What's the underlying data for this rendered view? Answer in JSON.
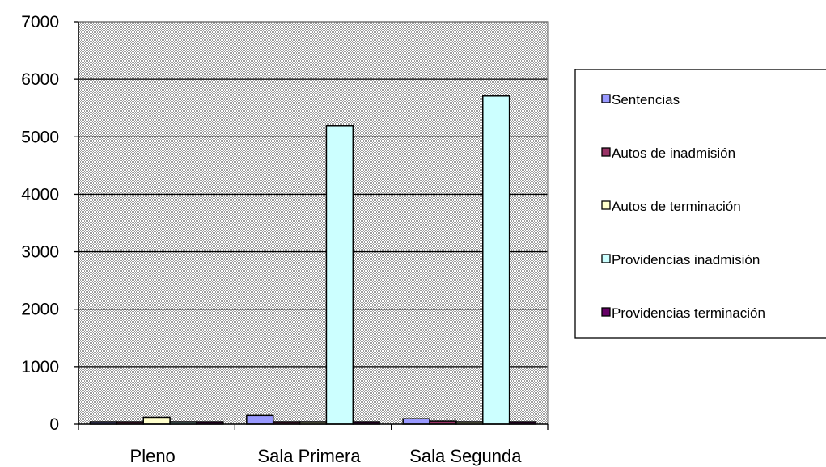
{
  "chart_data": {
    "type": "bar",
    "categories": [
      "Pleno",
      "Sala Primera",
      "Sala Segunda"
    ],
    "series": [
      {
        "name": "Sentencias",
        "values": [
          20,
          150,
          95
        ],
        "color": "#9999FF"
      },
      {
        "name": "Autos de inadmisión",
        "values": [
          10,
          25,
          55
        ],
        "color": "#993366"
      },
      {
        "name": "Autos de terminación",
        "values": [
          120,
          15,
          10
        ],
        "color": "#FFFFCC"
      },
      {
        "name": "Providencias inadmisión",
        "values": [
          0,
          5190,
          5710
        ],
        "color": "#CCFFFF"
      },
      {
        "name": "Providencias terminación",
        "values": [
          0,
          25,
          30
        ],
        "color": "#660066"
      }
    ],
    "yticks": [
      0,
      1000,
      2000,
      3000,
      4000,
      5000,
      6000,
      7000
    ],
    "ylim": [
      0,
      7000
    ],
    "title": "",
    "xlabel": "",
    "ylabel": "",
    "grid": true,
    "legend_position": "right",
    "plot_background": "#C0C0C0"
  }
}
